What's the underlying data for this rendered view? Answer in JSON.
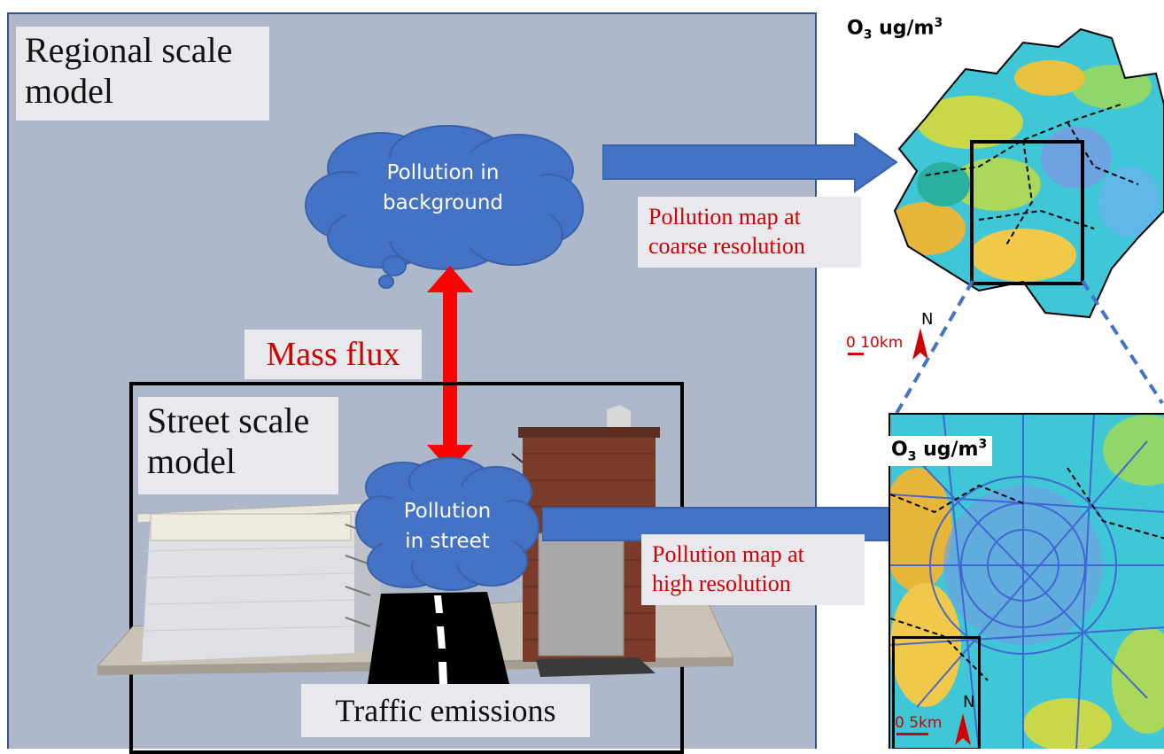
{
  "regional": {
    "title_line1": "Regional scale",
    "title_line2": "model"
  },
  "street": {
    "title_line1": "Street scale",
    "title_line2": "model"
  },
  "clouds": {
    "background": {
      "line1": "Pollution in",
      "line2": "background"
    },
    "street": {
      "line1": "Pollution",
      "line2": "in street"
    }
  },
  "mass_flux": "Mass flux",
  "traffic": "Traffic emissions",
  "coarse_map": {
    "label_line1": "Pollution map at",
    "label_line2": "coarse resolution",
    "title": "O",
    "title_sub": "3",
    "title_unit": " ug/m",
    "title_sup": "3",
    "scale": "0 10km",
    "north": "N"
  },
  "fine_map": {
    "label_line1": "Pollution map at",
    "label_line2": "high resolution",
    "title": "O",
    "title_sub": "3",
    "title_unit": " ug/m",
    "title_sup": "3",
    "scale": "0  5km",
    "north": "N"
  },
  "colors": {
    "panel": "#adb9ca",
    "cloud": "#4472c4",
    "arrow": "#4472c4",
    "flux": "#ff0000",
    "label_red": "#d00000"
  }
}
